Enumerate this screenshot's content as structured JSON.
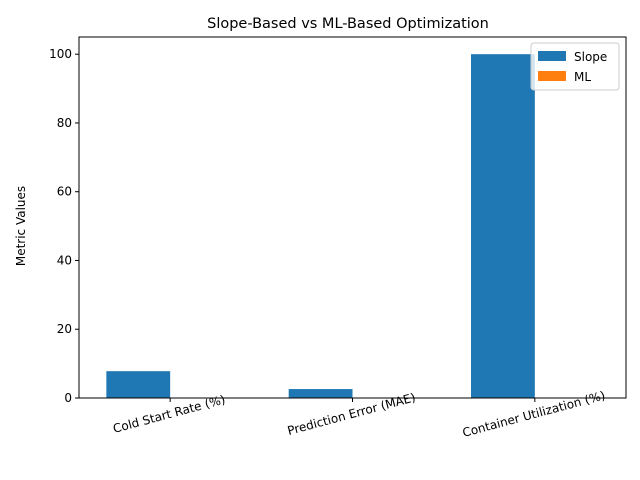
{
  "chart_data": {
    "type": "bar",
    "title": "Slope-Based vs ML-Based Optimization",
    "xlabel": "",
    "ylabel": "Metric Values",
    "categories": [
      "Cold Start Rate (%)",
      "Prediction Error (MAE)",
      "Container Utilization (%)"
    ],
    "series": [
      {
        "name": "Slope",
        "color": "#1f77b4",
        "values": [
          7.8,
          2.6,
          100.0
        ]
      },
      {
        "name": "ML",
        "color": "#ff7f0e",
        "values": [
          0.0,
          0.0,
          0.0
        ]
      }
    ],
    "ylim": [
      0,
      105
    ],
    "yticks": [
      "0",
      "20",
      "40",
      "60",
      "80",
      "100"
    ],
    "grid": false,
    "legend_position": "top-right"
  }
}
